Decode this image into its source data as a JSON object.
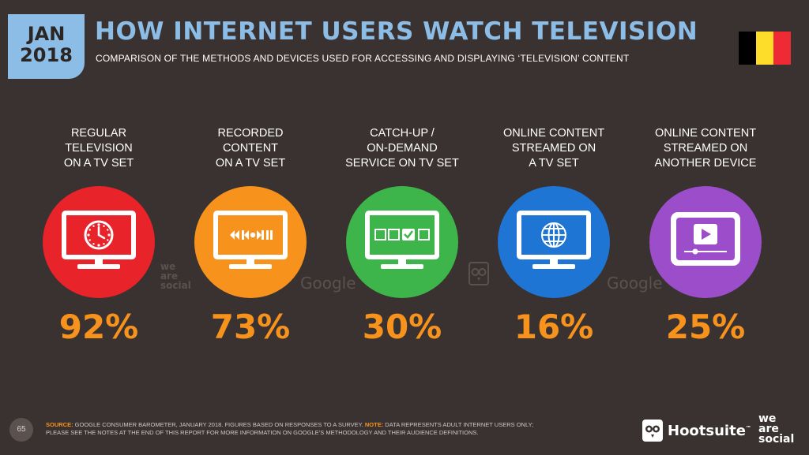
{
  "header": {
    "date_month": "JAN",
    "date_year": "2018",
    "title": "HOW INTERNET USERS WATCH TELEVISION",
    "subtitle": "COMPARISON OF THE METHODS AND DEVICES USED FOR ACCESSING AND DISPLAYING ‘TELEVISION’ CONTENT"
  },
  "flag": {
    "colors": [
      "#000000",
      "#fddc2a",
      "#ee2a35"
    ]
  },
  "chart_data": {
    "type": "bar",
    "categories": [
      "REGULAR TELEVISION ON A TV SET",
      "RECORDED CONTENT ON A TV SET",
      "CATCH-UP / ON-DEMAND SERVICE ON TV SET",
      "ONLINE CONTENT STREAMED ON A TV SET",
      "ONLINE CONTENT STREAMED ON ANOTHER DEVICE"
    ],
    "values": [
      92,
      73,
      30,
      16,
      25
    ],
    "unit": "%",
    "items": [
      {
        "label_lines": [
          "REGULAR",
          "TELEVISION",
          "ON A TV SET"
        ],
        "value_label": "92%",
        "color": "#e8232a",
        "icon": "clock-icon"
      },
      {
        "label_lines": [
          "RECORDED",
          "CONTENT",
          "ON A TV SET"
        ],
        "value_label": "73%",
        "color": "#f7931d",
        "icon": "playback-controls-icon"
      },
      {
        "label_lines": [
          "CATCH-UP /",
          "ON-DEMAND",
          "SERVICE ON TV SET"
        ],
        "value_label": "30%",
        "color": "#3db54a",
        "icon": "content-selection-icon"
      },
      {
        "label_lines": [
          "ONLINE CONTENT",
          "STREAMED ON",
          "A TV SET"
        ],
        "value_label": "16%",
        "color": "#1f75d3",
        "icon": "globe-icon"
      },
      {
        "label_lines": [
          "ONLINE CONTENT",
          "STREAMED ON",
          "ANOTHER DEVICE"
        ],
        "value_label": "25%",
        "color": "#9b4dca",
        "icon": "video-player-icon"
      }
    ]
  },
  "watermarks": {
    "wearesocial": [
      "we",
      "are",
      "social"
    ],
    "google": "Google"
  },
  "footer": {
    "page_number": "65",
    "source_label": "SOURCE:",
    "source_text": " GOOGLE CONSUMER BAROMETER, JANUARY 2018. FIGURES BASED ON RESPONSES TO A SURVEY. ",
    "note_label": "NOTE:",
    "note_text": " DATA REPRESENTS ADULT INTERNET USERS ONLY; PLEASE SEE THE NOTES AT THE END OF THIS REPORT FOR MORE INFORMATION ON GOOGLE’S METHODOLOGY AND THEIR AUDIENCE DEFINITIONS.",
    "hootsuite_label": "Hootsuite",
    "hootsuite_tm": "™",
    "wearesocial_lines": [
      "we",
      "are",
      "social"
    ]
  }
}
